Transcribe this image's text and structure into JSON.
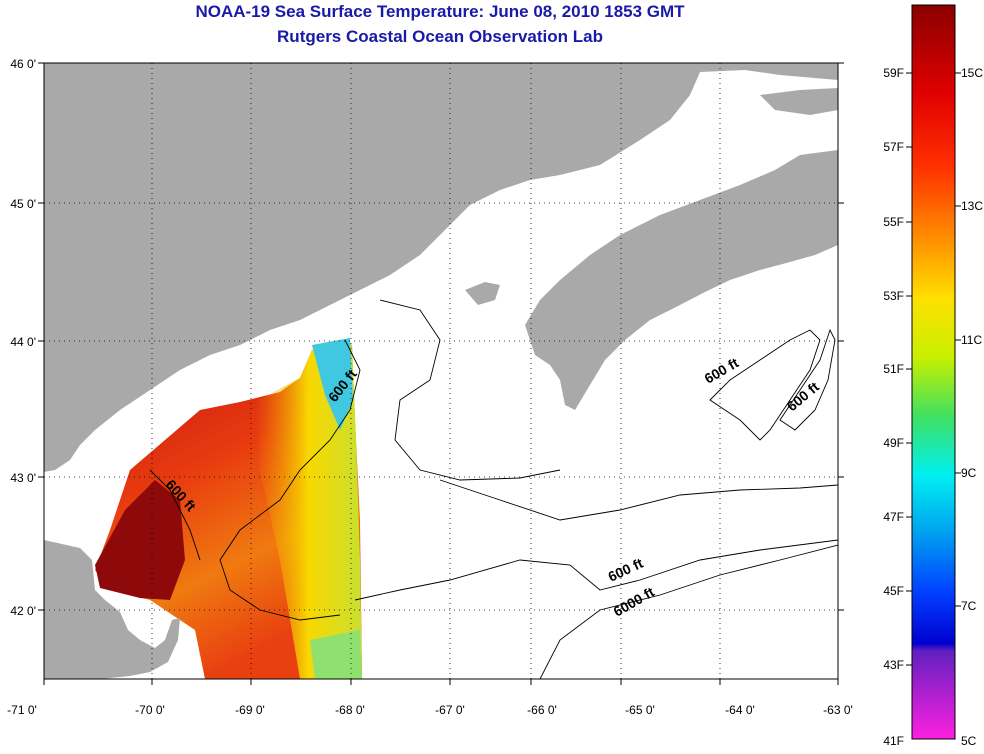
{
  "title_line1": "NOAA-19 Sea Surface Temperature:  June 08, 2010 1853 GMT",
  "title_line2": "Rutgers Coastal Ocean Observation Lab",
  "map": {
    "lon_ticks": [
      "-71 0'",
      "-70 0'",
      "-69 0'",
      "-68 0'",
      "-67 0'",
      "-66 0'",
      "-65 0'",
      "-64 0'",
      "-63 0'"
    ],
    "lat_ticks": [
      "46 0'",
      "45 0'",
      "44 0'",
      "43 0'",
      "42 0'"
    ],
    "contour_labels": [
      "600 ft",
      "600 ft",
      "600 ft",
      "600 ft",
      "600 ft",
      "6000 ft"
    ],
    "colors": {
      "land": "#a9a9a9",
      "sea": "#ffffff",
      "contour": "#000000"
    }
  },
  "colorbar": {
    "fahrenheit": [
      "59F",
      "57F",
      "55F",
      "53F",
      "51F",
      "49F",
      "47F",
      "45F",
      "43F",
      "41F"
    ],
    "celsius": [
      "15C",
      "13C",
      "11C",
      "9C",
      "7C",
      "5C"
    ]
  }
}
